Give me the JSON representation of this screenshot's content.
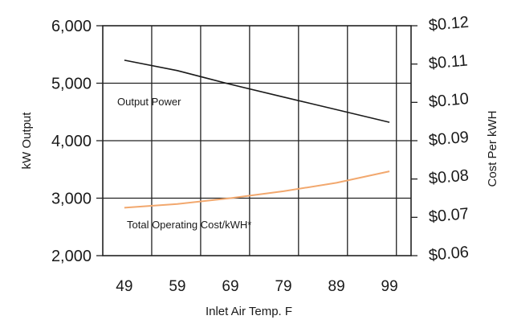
{
  "chart_data": {
    "type": "line",
    "x_axis": {
      "label": "Inlet Air Temp. F",
      "ticks": [
        "49",
        "59",
        "69",
        "79",
        "89",
        "99"
      ],
      "range": [
        49,
        99
      ]
    },
    "y_left": {
      "label": "kW Output",
      "ticks": [
        "6,000",
        "5,000",
        "4,000",
        "3,000",
        "2,000"
      ],
      "range": [
        2000,
        6000
      ]
    },
    "y_right": {
      "label": "Cost Per kWH",
      "ticks": [
        "$0.12",
        "$0.11",
        "$0.10",
        "$0.09",
        "$0.08",
        "$0.07",
        "$0.06"
      ],
      "range": [
        0.06,
        0.12
      ]
    },
    "grid": true,
    "series": [
      {
        "name": "Output Power",
        "axis": "left",
        "color": "#1a1a1a",
        "x": [
          49,
          59,
          69,
          79,
          89,
          99
        ],
        "y": [
          5400,
          5220,
          4980,
          4760,
          4540,
          4320
        ]
      },
      {
        "name": "Total Operating Cost/kWH*",
        "axis": "right",
        "color": "#f2a86e",
        "x": [
          49,
          59,
          69,
          79,
          89,
          99
        ],
        "y": [
          0.0725,
          0.0735,
          0.075,
          0.0768,
          0.079,
          0.082
        ]
      }
    ],
    "annotations": [
      "Output Power",
      "Total Operating Cost/kWH*"
    ]
  }
}
